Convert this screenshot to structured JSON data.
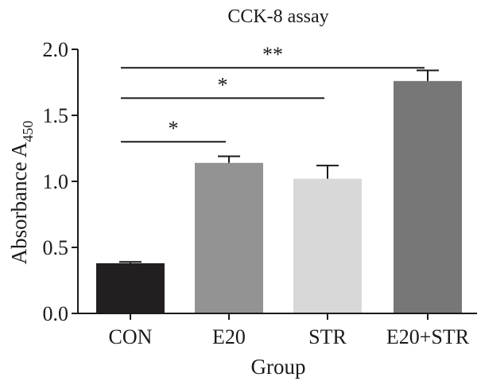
{
  "chart_data": {
    "type": "bar",
    "title": "CCK-8 assay",
    "xlabel": "Group",
    "ylabel": "Absorbance A",
    "ylabel_subscript": "450",
    "categories": [
      "CON",
      "E20",
      "STR",
      "E20+STR"
    ],
    "values": [
      0.38,
      1.14,
      1.02,
      1.76
    ],
    "errors": [
      0.01,
      0.05,
      0.1,
      0.08
    ],
    "colors": [
      "#231f20",
      "#939393",
      "#d8d8d8",
      "#777777"
    ],
    "ylim": [
      0.0,
      2.0
    ],
    "yticks": [
      0.0,
      0.5,
      1.0,
      1.5,
      2.0
    ],
    "ytick_labels": [
      "0.0",
      "0.5",
      "1.0",
      "1.5",
      "2.0"
    ],
    "grid": false,
    "significance": [
      {
        "from": "CON",
        "to": "E20",
        "label": "*",
        "level": 1.3
      },
      {
        "from": "CON",
        "to": "STR",
        "label": "*",
        "level": 1.63
      },
      {
        "from": "CON",
        "to": "E20+STR",
        "label": "**",
        "level": 1.86
      }
    ]
  }
}
